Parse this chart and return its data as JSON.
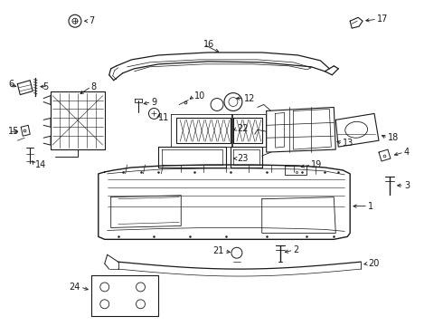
{
  "background_color": "#ffffff",
  "line_color": "#1a1a1a",
  "label_color": "#000000",
  "label_fontsize": 7.0,
  "figsize": [
    4.9,
    3.6
  ],
  "dpi": 100
}
